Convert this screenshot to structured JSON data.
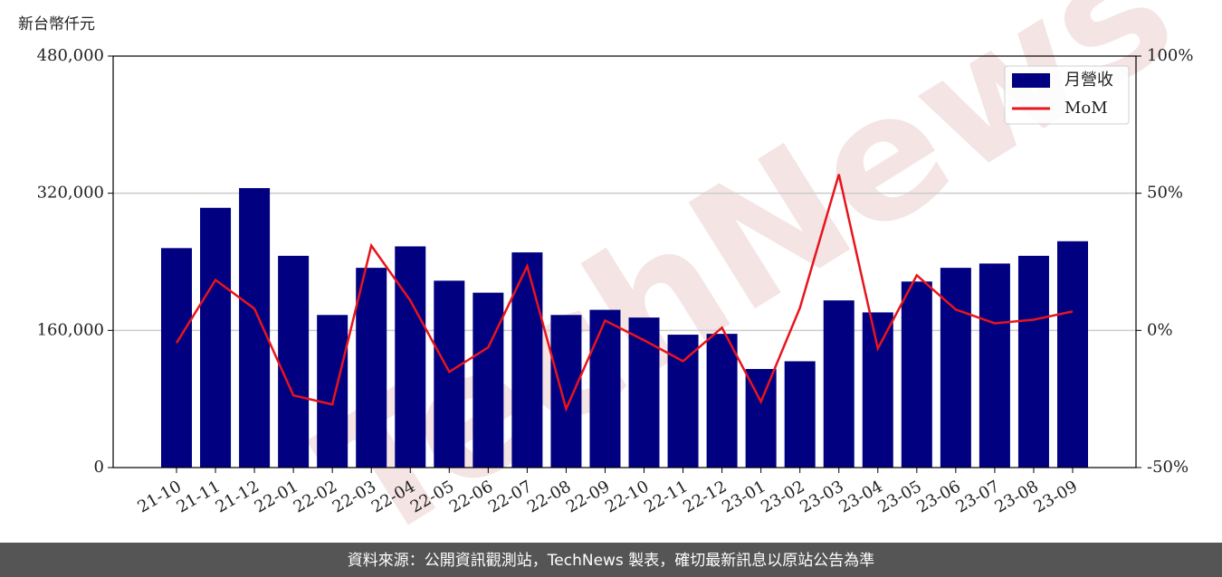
{
  "chart_data": {
    "type": "bar_line",
    "y_label": "新台幣仟元",
    "watermark": "TechNews",
    "footer": "資料來源：公開資訊觀測站，TechNews 製表，確切最新訊息以原站公告為準",
    "categories": [
      "21-10",
      "21-11",
      "21-12",
      "22-01",
      "22-02",
      "22-03",
      "22-04",
      "22-05",
      "22-06",
      "22-07",
      "22-08",
      "22-09",
      "22-10",
      "22-11",
      "22-12",
      "23-01",
      "23-02",
      "23-03",
      "23-04",
      "23-05",
      "23-06",
      "23-07",
      "23-08",
      "23-09"
    ],
    "series": [
      {
        "name": "月營收",
        "type": "bar",
        "color": "#000080",
        "values": [
          256000,
          303000,
          326000,
          247000,
          178000,
          233000,
          258000,
          218000,
          204000,
          251000,
          178000,
          184000,
          175000,
          155000,
          156000,
          115000,
          124000,
          195000,
          181000,
          217000,
          233000,
          238000,
          247000,
          264000
        ]
      },
      {
        "name": "MoM",
        "type": "line",
        "axis": "y2",
        "color": "#e8141c",
        "values": [
          -4.6,
          18.4,
          7.9,
          -23.7,
          -27.0,
          30.9,
          10.9,
          -15.1,
          -6.2,
          23.4,
          -28.6,
          3.6,
          -3.6,
          -11.2,
          1.0,
          -26.0,
          8.2,
          56.9,
          -6.6,
          20.1,
          7.6,
          2.6,
          3.9,
          6.9
        ]
      }
    ],
    "ylim": [
      0,
      480000
    ],
    "yticks": [
      {
        "value": 0,
        "label": "0"
      },
      {
        "value": 160000,
        "label": "160,000"
      },
      {
        "value": 320000,
        "label": "320,000"
      },
      {
        "value": 480000,
        "label": "480,000"
      }
    ],
    "y2lim": [
      -50,
      100
    ],
    "y2ticks": [
      {
        "value": -50,
        "label": "-50%"
      },
      {
        "value": 0,
        "label": "0%"
      },
      {
        "value": 50,
        "label": "50%"
      },
      {
        "value": 100,
        "label": "100%"
      }
    ],
    "grid": true,
    "legend": "upper right"
  }
}
